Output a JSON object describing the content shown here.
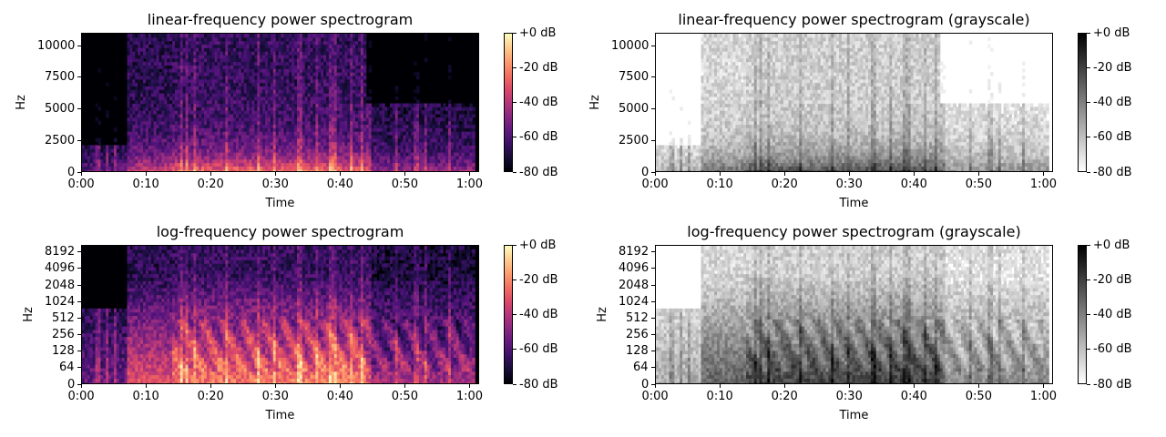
{
  "chart_data": [
    {
      "type": "heatmap",
      "title": "linear-frequency power spectrogram",
      "xlabel": "Time",
      "ylabel": "Hz",
      "x_ticks": [
        "0:00",
        "0:10",
        "0:20",
        "0:30",
        "0:40",
        "0:50",
        "1:00"
      ],
      "x_tick_seconds": [
        0,
        10,
        20,
        30,
        40,
        50,
        60
      ],
      "xlim_seconds": [
        0,
        61.5
      ],
      "y_ticks": [
        "0",
        "2500",
        "5000",
        "7500",
        "10000"
      ],
      "y_tick_values": [
        0,
        2500,
        5000,
        7500,
        10000
      ],
      "ylim": [
        0,
        11025
      ],
      "y_scale": "linear",
      "colormap": "magma",
      "colorbar_ticks": [
        "+0 dB",
        "-20 dB",
        "-40 dB",
        "-60 dB",
        "-80 dB"
      ],
      "colorbar_range_db": [
        -80,
        0
      ]
    },
    {
      "type": "heatmap",
      "title": "linear-frequency power spectrogram (grayscale)",
      "xlabel": "Time",
      "ylabel": "Hz",
      "x_ticks": [
        "0:00",
        "0:10",
        "0:20",
        "0:30",
        "0:40",
        "0:50",
        "1:00"
      ],
      "x_tick_seconds": [
        0,
        10,
        20,
        30,
        40,
        50,
        60
      ],
      "xlim_seconds": [
        0,
        61.5
      ],
      "y_ticks": [
        "0",
        "2500",
        "5000",
        "7500",
        "10000"
      ],
      "y_tick_values": [
        0,
        2500,
        5000,
        7500,
        10000
      ],
      "ylim": [
        0,
        11025
      ],
      "y_scale": "linear",
      "colormap": "gray_r",
      "colorbar_ticks": [
        "+0 dB",
        "-20 dB",
        "-40 dB",
        "-60 dB",
        "-80 dB"
      ],
      "colorbar_range_db": [
        -80,
        0
      ]
    },
    {
      "type": "heatmap",
      "title": "log-frequency power spectrogram",
      "xlabel": "Time",
      "ylabel": "Hz",
      "x_ticks": [
        "0:00",
        "0:10",
        "0:20",
        "0:30",
        "0:40",
        "0:50",
        "1:00"
      ],
      "x_tick_seconds": [
        0,
        10,
        20,
        30,
        40,
        50,
        60
      ],
      "xlim_seconds": [
        0,
        61.5
      ],
      "y_ticks": [
        "0",
        "64",
        "128",
        "256",
        "512",
        "1024",
        "2048",
        "4096",
        "8192"
      ],
      "y_tick_values": [
        0,
        64,
        128,
        256,
        512,
        1024,
        2048,
        4096,
        8192
      ],
      "ylim": [
        0,
        11025
      ],
      "y_scale": "symlog",
      "colormap": "magma",
      "colorbar_ticks": [
        "+0 dB",
        "-20 dB",
        "-40 dB",
        "-60 dB",
        "-80 dB"
      ],
      "colorbar_range_db": [
        -80,
        0
      ]
    },
    {
      "type": "heatmap",
      "title": "log-frequency power spectrogram (grayscale)",
      "xlabel": "Time",
      "ylabel": "Hz",
      "x_ticks": [
        "0:00",
        "0:10",
        "0:20",
        "0:30",
        "0:40",
        "0:50",
        "1:00"
      ],
      "x_tick_seconds": [
        0,
        10,
        20,
        30,
        40,
        50,
        60
      ],
      "xlim_seconds": [
        0,
        61.5
      ],
      "y_ticks": [
        "0",
        "64",
        "128",
        "256",
        "512",
        "1024",
        "2048",
        "4096",
        "8192"
      ],
      "y_tick_values": [
        0,
        64,
        128,
        256,
        512,
        1024,
        2048,
        4096,
        8192
      ],
      "ylim": [
        0,
        11025
      ],
      "y_scale": "symlog",
      "colormap": "gray_r",
      "colorbar_ticks": [
        "+0 dB",
        "-20 dB",
        "-40 dB",
        "-60 dB",
        "-80 dB"
      ],
      "colorbar_range_db": [
        -80,
        0
      ]
    }
  ]
}
